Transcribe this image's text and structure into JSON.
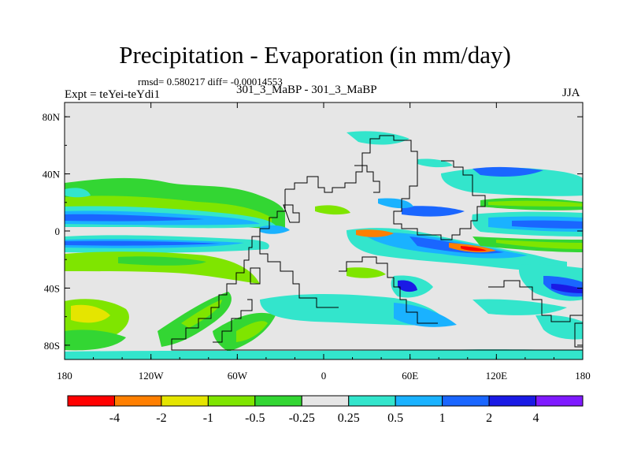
{
  "title": "Precipitation - Evaporation (in mm/day)",
  "rmsd_text": "rmsd= 0.580217 diff= -0.00014553",
  "expt_text": "Expt = teYei-teYdi1",
  "subtitle": "301_3_MaBP - 301_3_MaBP",
  "season": "JJA",
  "map": {
    "background_color": "#e6e6e6",
    "lon_ticks": [
      "180",
      "120W",
      "60W",
      "0",
      "60E",
      "120E",
      "180"
    ],
    "lat_ticks": [
      "80N",
      "40N",
      "0",
      "40S",
      "80S"
    ]
  },
  "colorbar": {
    "colors": [
      "#ff0000",
      "#ff7f00",
      "#e5e500",
      "#7fe500",
      "#33d633",
      "#e6e6e6",
      "#33e5cc",
      "#1ab2ff",
      "#1a66ff",
      "#1a1ae5",
      "#7f1aff"
    ],
    "labels": [
      "-4",
      "-2",
      "-1",
      "-0.5",
      "-0.25",
      "0.25",
      "0.5",
      "1",
      "2",
      "4"
    ]
  }
}
